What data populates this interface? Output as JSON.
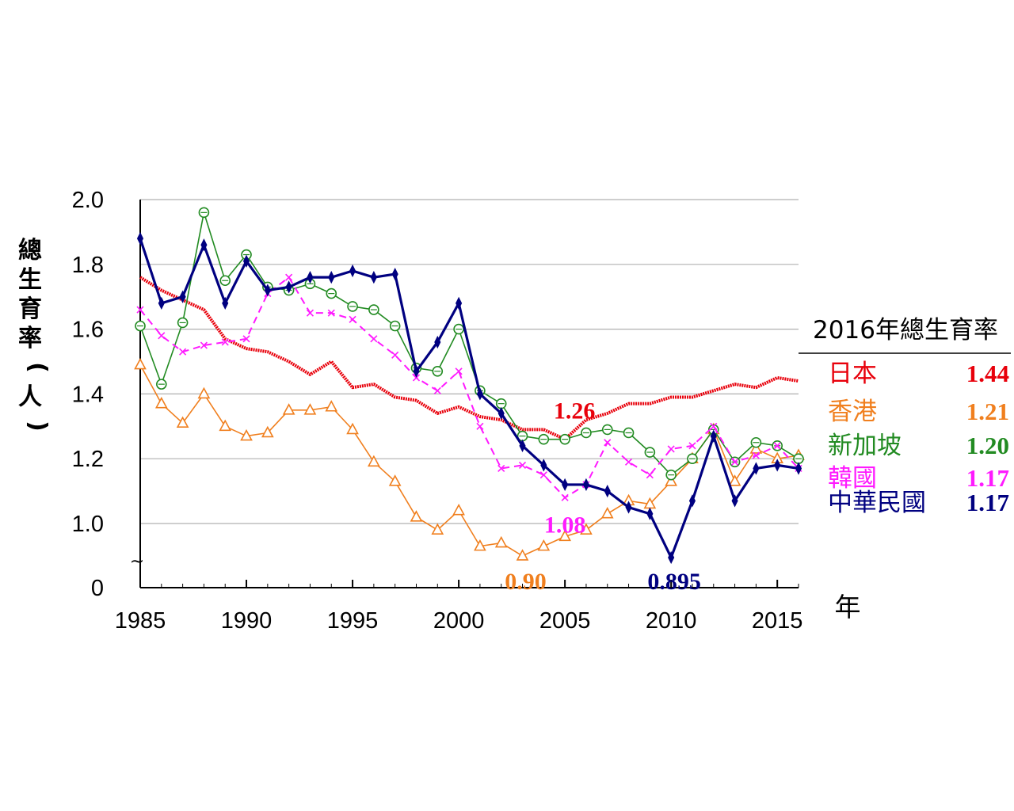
{
  "chart_data": {
    "type": "line",
    "title": "",
    "xlabel": "年",
    "ylabel": "總生育率(人)",
    "xlim": [
      1985,
      2016
    ],
    "ylim": [
      0.8,
      2.0
    ],
    "axis_break": "~",
    "x_ticks": [
      "1985",
      "1990",
      "1995",
      "2000",
      "2005",
      "2010",
      "2015"
    ],
    "y_ticks": [
      "2.0",
      "1.8",
      "1.6",
      "1.4",
      "1.2",
      "1.0",
      "0"
    ],
    "grid": "horizontal",
    "x": [
      1985,
      1986,
      1987,
      1988,
      1989,
      1990,
      1991,
      1992,
      1993,
      1994,
      1995,
      1996,
      1997,
      1998,
      1999,
      2000,
      2001,
      2002,
      2003,
      2004,
      2005,
      2006,
      2007,
      2008,
      2009,
      2010,
      2011,
      2012,
      2013,
      2014,
      2015,
      2016
    ],
    "series": [
      {
        "name": "日本",
        "color": "#e8000b",
        "marker": "none",
        "values": [
          1.76,
          1.72,
          1.69,
          1.66,
          1.57,
          1.54,
          1.53,
          1.5,
          1.46,
          1.5,
          1.42,
          1.43,
          1.39,
          1.38,
          1.34,
          1.36,
          1.33,
          1.32,
          1.29,
          1.29,
          1.26,
          1.32,
          1.34,
          1.37,
          1.37,
          1.39,
          1.39,
          1.41,
          1.43,
          1.42,
          1.45,
          1.44
        ]
      },
      {
        "name": "香港",
        "color": "#f07f1e",
        "marker": "triangle",
        "values": [
          1.49,
          1.37,
          1.31,
          1.4,
          1.3,
          1.27,
          1.28,
          1.35,
          1.35,
          1.36,
          1.29,
          1.19,
          1.13,
          1.02,
          0.98,
          1.04,
          0.93,
          0.94,
          0.9,
          0.93,
          0.96,
          0.98,
          1.03,
          1.07,
          1.06,
          1.13,
          1.2,
          1.29,
          1.13,
          1.23,
          1.2,
          1.21
        ]
      },
      {
        "name": "新加坡",
        "color": "#228b22",
        "marker": "circle",
        "values": [
          1.61,
          1.43,
          1.62,
          1.96,
          1.75,
          1.83,
          1.73,
          1.72,
          1.74,
          1.71,
          1.67,
          1.66,
          1.61,
          1.48,
          1.47,
          1.6,
          1.41,
          1.37,
          1.27,
          1.26,
          1.26,
          1.28,
          1.29,
          1.28,
          1.22,
          1.15,
          1.2,
          1.29,
          1.19,
          1.25,
          1.24,
          1.2
        ]
      },
      {
        "name": "韓國",
        "color": "#ff1aff",
        "marker": "x",
        "dashed": true,
        "values": [
          1.66,
          1.58,
          1.53,
          1.55,
          1.56,
          1.57,
          1.71,
          1.76,
          1.65,
          1.65,
          1.63,
          1.57,
          1.52,
          1.45,
          1.41,
          1.47,
          1.3,
          1.17,
          1.18,
          1.15,
          1.08,
          1.12,
          1.25,
          1.19,
          1.15,
          1.23,
          1.24,
          1.3,
          1.19,
          1.21,
          1.24,
          1.17
        ]
      },
      {
        "name": "中華民國",
        "color": "#000080",
        "marker": "diamond",
        "values": [
          1.88,
          1.68,
          1.7,
          1.86,
          1.68,
          1.81,
          1.72,
          1.73,
          1.76,
          1.76,
          1.78,
          1.76,
          1.77,
          1.47,
          1.56,
          1.68,
          1.4,
          1.34,
          1.24,
          1.18,
          1.12,
          1.12,
          1.1,
          1.05,
          1.03,
          0.895,
          1.07,
          1.27,
          1.07,
          1.17,
          1.18,
          1.17
        ]
      }
    ],
    "annotations": [
      {
        "text": "1.26",
        "series": "日本",
        "x": 2005,
        "y": 1.26
      },
      {
        "text": "1.08",
        "series": "韓國",
        "x": 2005,
        "y": 1.08
      },
      {
        "text": "0.90",
        "series": "香港",
        "x": 2003,
        "y": 0.9
      },
      {
        "text": "0.895",
        "series": "中華民國",
        "x": 2010,
        "y": 0.895
      }
    ],
    "legend": {
      "placement": "right",
      "title": "2016年總生育率",
      "entries": [
        {
          "name": "日本",
          "value": "1.44",
          "color": "#e8000b"
        },
        {
          "name": "香港",
          "value": "1.21",
          "color": "#f07f1e"
        },
        {
          "name": "新加坡",
          "value": "1.20",
          "color": "#228b22"
        },
        {
          "name": "韓國",
          "value": "1.17",
          "color": "#ff1aff"
        },
        {
          "name": "中華民國",
          "value": "1.17",
          "color": "#000080"
        }
      ]
    }
  }
}
